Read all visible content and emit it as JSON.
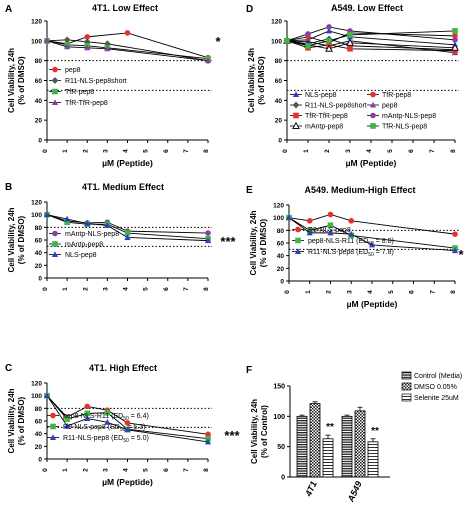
{
  "chart_data": [
    {
      "panel": "A",
      "type": "line",
      "title": "4T1. Low Effect",
      "xlabel": "µM (Peptide)",
      "ylabel": [
        "Cell Viability, 24h",
        "(% of DMSO)"
      ],
      "xlim": [
        0,
        8
      ],
      "ylim": [
        0,
        120
      ],
      "xticks": [
        0,
        1,
        2,
        3,
        4,
        5,
        6,
        7,
        8
      ],
      "yticks": [
        0,
        20,
        40,
        60,
        80,
        100,
        120
      ],
      "reference_lines": [
        80,
        50
      ],
      "annotation": "*",
      "legend_position": "inside-lower-left",
      "series": [
        {
          "name": "pep8",
          "color": "#e8302a",
          "marker": "circle",
          "x": [
            0,
            1,
            2,
            4,
            8
          ],
          "y": [
            100,
            97,
            104,
            108,
            83
          ]
        },
        {
          "name": "R11-NLS-pep8short",
          "color": "#555555",
          "marker": "diamond",
          "x": [
            0,
            1,
            2,
            3,
            8
          ],
          "y": [
            100,
            101,
            99,
            97,
            80
          ]
        },
        {
          "name": "TfR-pep8",
          "color": "#41b446",
          "marker": "square",
          "x": [
            0,
            1,
            2,
            3,
            8
          ],
          "y": [
            100,
            96,
            95,
            93,
            82
          ]
        },
        {
          "name": "TfR-TfR-pep8",
          "color": "#8a3fa5",
          "marker": "triangle",
          "x": [
            0,
            1,
            2,
            3,
            8
          ],
          "y": [
            100,
            94,
            93,
            92,
            80
          ]
        }
      ]
    },
    {
      "panel": "B",
      "type": "line",
      "title": "4T1. Medium Effect",
      "ylabel": [
        "Cell Viability, 24h",
        "(% of DMSO)"
      ],
      "xlim": [
        0,
        8
      ],
      "ylim": [
        0,
        120
      ],
      "xticks": [
        0,
        1,
        2,
        3,
        4,
        5,
        6,
        7,
        8
      ],
      "yticks": [
        0,
        20,
        40,
        60,
        80,
        100,
        120
      ],
      "reference_lines": [
        80,
        50
      ],
      "annotation": "***",
      "legend_position": "inside-lower-left",
      "series": [
        {
          "name": "mAntp-NLS-pep8",
          "color": "#8a3fa5",
          "marker": "circle",
          "x": [
            0,
            1,
            2,
            3,
            4,
            8
          ],
          "y": [
            100,
            90,
            87,
            88,
            74,
            71
          ]
        },
        {
          "name": "mAntp-pep8",
          "color": "#41b446",
          "marker": "square",
          "x": [
            0,
            1,
            2,
            3,
            4,
            8
          ],
          "y": [
            100,
            88,
            85,
            85,
            71,
            62
          ]
        },
        {
          "name": "NLS-pep8",
          "color": "#2f3fc4",
          "marker": "triangle",
          "x": [
            0,
            1,
            2,
            3,
            4,
            8
          ],
          "y": [
            100,
            93,
            86,
            83,
            64,
            59
          ]
        }
      ]
    },
    {
      "panel": "C",
      "type": "line",
      "title": "4T1. High Effect",
      "xlabel": "µM (Peptide)",
      "ylabel": [
        "Cell Viability, 24h",
        "(% of DMSO)"
      ],
      "xlim": [
        0,
        8
      ],
      "ylim": [
        0,
        120
      ],
      "xticks": [
        0,
        1,
        2,
        3,
        4,
        5,
        6,
        7,
        8
      ],
      "yticks": [
        0,
        20,
        40,
        60,
        80,
        100,
        120
      ],
      "reference_lines": [
        80,
        50
      ],
      "annotation": "***",
      "legend_position": "inside-lower-left",
      "series": [
        {
          "name": "pep8-NLS-R11 (ED50 = 6.4)",
          "color": "#e8302a",
          "marker": "circle",
          "x": [
            0,
            1,
            2,
            3,
            4,
            8
          ],
          "y": [
            100,
            66,
            83,
            77,
            57,
            39
          ]
        },
        {
          "name": "R9-NLS-pep8 (ED50 = 5.3)",
          "color": "#41b446",
          "marker": "square",
          "x": [
            0,
            1,
            2,
            3,
            4,
            8
          ],
          "y": [
            100,
            63,
            72,
            73,
            47,
            32
          ]
        },
        {
          "name": "R11-NLS-pep8 (ED50 = 5.0)",
          "color": "#2f3fc4",
          "marker": "triangle",
          "x": [
            0,
            1,
            2,
            3,
            4,
            8
          ],
          "y": [
            100,
            52,
            64,
            58,
            46,
            27
          ]
        }
      ]
    },
    {
      "panel": "D",
      "type": "line",
      "title": "A549. Low Effect",
      "xlabel": "µM (Peptide)",
      "ylabel": [
        "Cell Viability, 24h",
        "(% of DMSO)"
      ],
      "xlim": [
        0,
        8
      ],
      "ylim": [
        0,
        120
      ],
      "xticks": [
        0,
        1,
        2,
        3,
        4,
        5,
        6,
        7,
        8
      ],
      "yticks": [
        0,
        20,
        40,
        60,
        80,
        100,
        120
      ],
      "reference_lines": [
        80,
        50
      ],
      "legend_position": "inside-lower",
      "series": [
        {
          "name": "NLS-pep8",
          "color": "#2f3fc4",
          "marker": "triangle",
          "x": [
            0,
            1,
            2,
            3,
            8
          ],
          "y": [
            100,
            101,
            110,
            104,
            96
          ]
        },
        {
          "name": "TfR-pep8",
          "color": "#e8302a",
          "marker": "circle",
          "x": [
            0,
            1,
            2,
            3,
            8
          ],
          "y": [
            100,
            104,
            98,
            108,
            105
          ]
        },
        {
          "name": "R11-NLS-pep8short",
          "color": "#555555",
          "marker": "diamond",
          "x": [
            0,
            1,
            2,
            3,
            8
          ],
          "y": [
            100,
            97,
            102,
            95,
            91
          ]
        },
        {
          "name": "pep8",
          "color": "#8a3fa5",
          "marker": "triangle",
          "x": [
            0,
            1,
            2,
            3,
            8
          ],
          "y": [
            100,
            99,
            95,
            100,
            88
          ]
        },
        {
          "name": "TfR-TfR-pep8",
          "color": "#e8302a",
          "marker": "square",
          "x": [
            0,
            1,
            2,
            3,
            8
          ],
          "y": [
            100,
            93,
            96,
            92,
            90
          ]
        },
        {
          "name": "mAntp-NLS-pep8",
          "color": "#8a3fa5",
          "marker": "circle",
          "x": [
            0,
            1,
            2,
            3,
            8
          ],
          "y": [
            100,
            107,
            114,
            110,
            101
          ]
        },
        {
          "name": "mAntp-pep8",
          "color": "#111111",
          "marker": "triangle-open",
          "x": [
            0,
            1,
            2,
            3,
            8
          ],
          "y": [
            100,
            96,
            92,
            98,
            93
          ]
        },
        {
          "name": "TfR-NLS-pep8",
          "color": "#41b446",
          "marker": "square",
          "x": [
            0,
            1,
            2,
            3,
            8
          ],
          "y": [
            100,
            95,
            100,
            106,
            110
          ]
        }
      ]
    },
    {
      "panel": "E",
      "type": "line",
      "title": "A549. Medium-High Effect",
      "xlabel": "µM (Peptide)",
      "ylabel": [
        "Cell Viability, 24h",
        "(% of DMSO)"
      ],
      "xlim": [
        0,
        8
      ],
      "ylim": [
        0,
        120
      ],
      "xticks": [
        0,
        1,
        2,
        3,
        4,
        5,
        6,
        7,
        8
      ],
      "yticks": [
        0,
        20,
        40,
        60,
        80,
        100,
        120
      ],
      "reference_lines": [
        80,
        50
      ],
      "annotation": "*",
      "legend_position": "inside-lower-left",
      "series": [
        {
          "name": "R9-NLS-pep8",
          "color": "#e8302a",
          "marker": "circle",
          "x": [
            0,
            1,
            2,
            3,
            8
          ],
          "y": [
            100,
            95,
            105,
            95,
            74
          ]
        },
        {
          "name": "pep8-NLS-R11 (ED50 = 8.8)",
          "color": "#41b446",
          "marker": "square",
          "x": [
            0,
            1,
            2,
            3,
            8
          ],
          "y": [
            100,
            80,
            88,
            72,
            52
          ]
        },
        {
          "name": "R11-NLS-pep8 (ED50 = 7.8)",
          "color": "#2f3fc4",
          "marker": "triangle",
          "x": [
            0,
            1,
            2,
            3,
            4,
            8
          ],
          "y": [
            100,
            76,
            76,
            74,
            57,
            48
          ]
        }
      ]
    },
    {
      "panel": "F",
      "type": "bar",
      "ylabel": [
        "Cell Viability, 24h",
        "(% of Control)"
      ],
      "categories": [
        "4T1",
        "A549"
      ],
      "ylim": [
        0,
        150
      ],
      "yticks": [
        0,
        50,
        100,
        150
      ],
      "legend_position": "top-right",
      "series": [
        {
          "name": "Control (Media)",
          "pattern": "horizontal-stripes",
          "values": [
            100,
            100
          ],
          "errors": [
            2,
            2
          ]
        },
        {
          "name": "DMSO  0.05%",
          "pattern": "checker",
          "values": [
            121,
            109
          ],
          "errors": [
            3,
            6
          ]
        },
        {
          "name": "Selenite 25uM",
          "pattern": "horizontal-stripes-light",
          "values": [
            63,
            58
          ],
          "errors": [
            6,
            5
          ]
        }
      ],
      "annotations": [
        "**",
        "**"
      ]
    }
  ]
}
